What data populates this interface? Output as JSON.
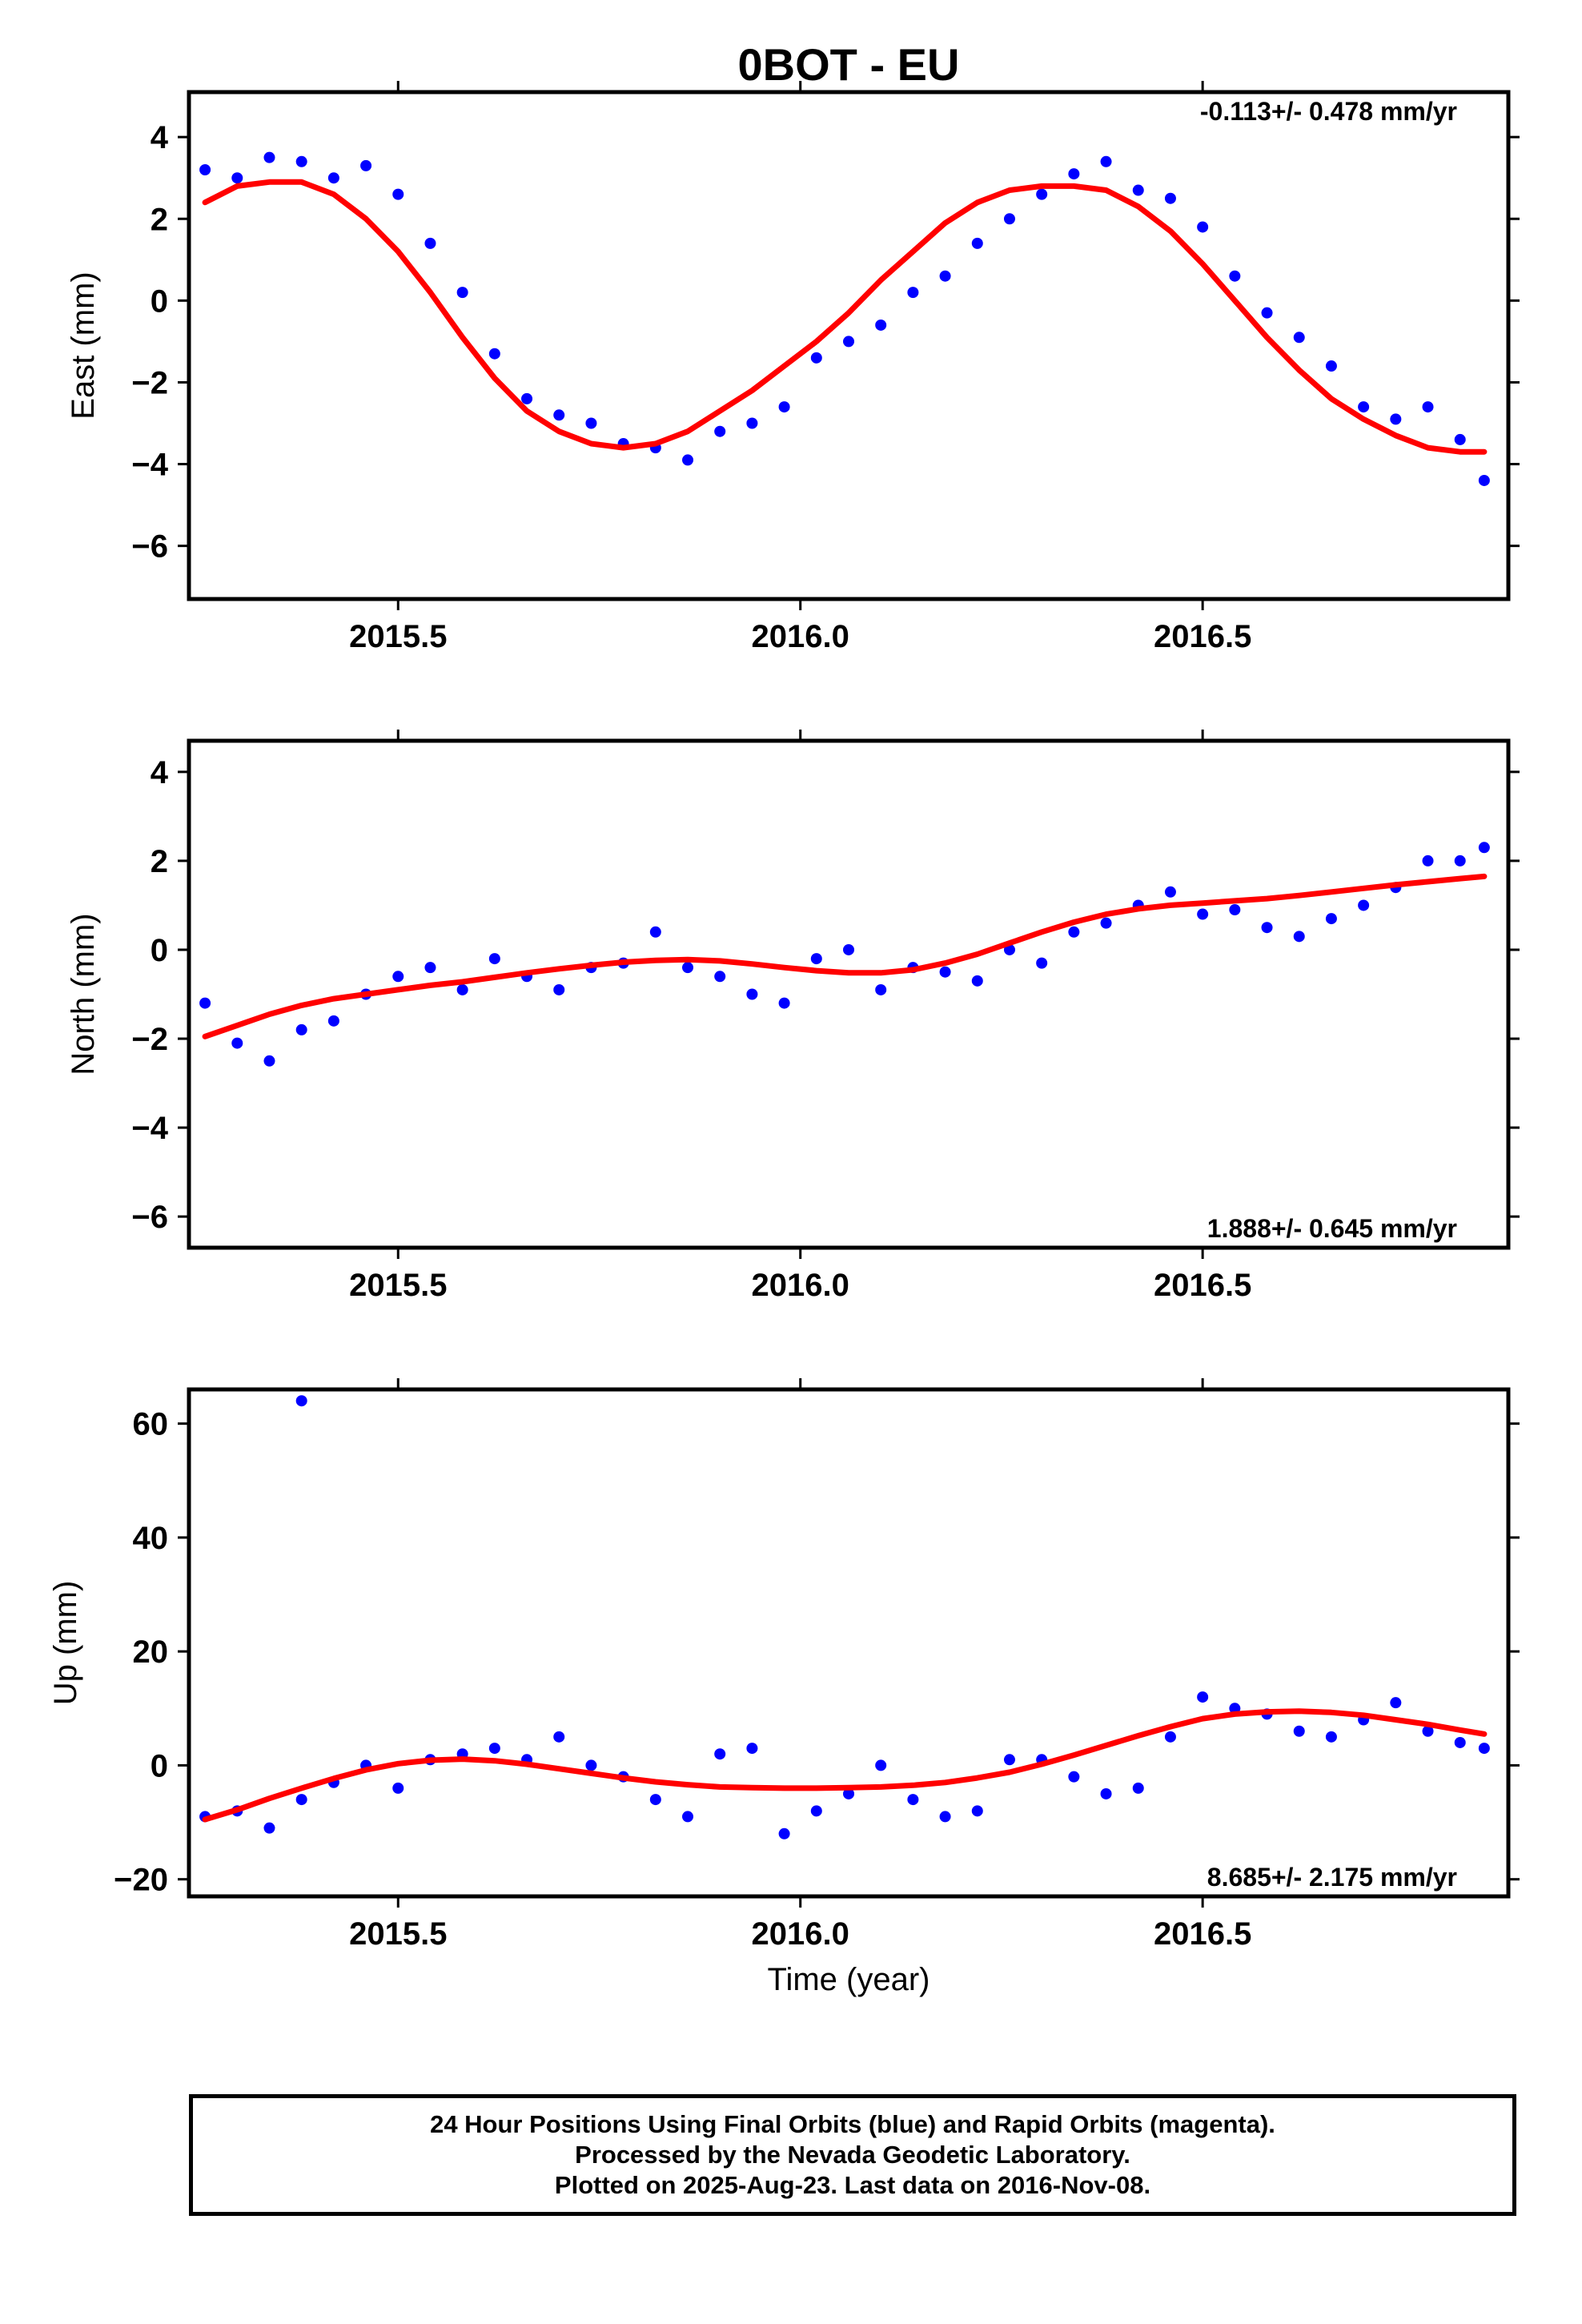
{
  "title": "0BOT - EU",
  "xlabel": "Time (year)",
  "x_tick_labels": [
    "2015.5",
    "2016.0",
    "2016.5"
  ],
  "colors": {
    "points": "#0000ff",
    "fit": "#ff0000",
    "frame": "#000000"
  },
  "footer": {
    "line1": "24 Hour Positions Using Final Orbits (blue) and Rapid Orbits (magenta).",
    "line2": "Processed by the Nevada Geodetic Laboratory.",
    "line3": "Plotted on 2025-Aug-23. Last data on 2016-Nov-08."
  },
  "chart_data": [
    {
      "type": "scatter",
      "ylabel": "East (mm)",
      "rate": "-0.113+/- 0.478 mm/yr",
      "xlim": [
        2015.24,
        2016.88
      ],
      "ylim": [
        -7.3,
        5.1
      ],
      "xticks": [
        2015.5,
        2016.0,
        2016.5
      ],
      "yticks": [
        -6,
        -4,
        -2,
        0,
        2,
        4
      ],
      "ytick_labels": [
        "−6",
        "−4",
        "−2",
        "0",
        "2",
        "4"
      ],
      "series": [
        {
          "kind": "points",
          "x": [
            2015.26,
            2015.3,
            2015.34,
            2015.38,
            2015.42,
            2015.46,
            2015.5,
            2015.54,
            2015.58,
            2015.62,
            2015.66,
            2015.7,
            2015.74,
            2015.78,
            2015.82,
            2015.86,
            2015.9,
            2015.94,
            2015.98,
            2016.02,
            2016.06,
            2016.1,
            2016.14,
            2016.18,
            2016.22,
            2016.26,
            2016.3,
            2016.34,
            2016.38,
            2016.42,
            2016.46,
            2016.5,
            2016.54,
            2016.58,
            2016.62,
            2016.66,
            2016.7,
            2016.74,
            2016.78,
            2016.82,
            2016.85
          ],
          "y": [
            3.2,
            3.0,
            3.5,
            3.4,
            3.0,
            3.3,
            2.6,
            1.4,
            0.2,
            -1.3,
            -2.4,
            -2.8,
            -3.0,
            -3.5,
            -3.6,
            -3.9,
            -3.2,
            -3.0,
            -2.6,
            -1.4,
            -1.0,
            -0.6,
            0.2,
            0.6,
            1.4,
            2.0,
            2.6,
            3.1,
            3.4,
            2.7,
            2.5,
            1.8,
            0.6,
            -0.3,
            -0.9,
            -1.6,
            -2.6,
            -2.9,
            -2.6,
            -3.4,
            -4.4
          ]
        },
        {
          "kind": "fit",
          "x": [
            2015.26,
            2015.3,
            2015.34,
            2015.38,
            2015.42,
            2015.46,
            2015.5,
            2015.54,
            2015.58,
            2015.62,
            2015.66,
            2015.7,
            2015.74,
            2015.78,
            2015.82,
            2015.86,
            2015.9,
            2015.94,
            2015.98,
            2016.02,
            2016.06,
            2016.1,
            2016.14,
            2016.18,
            2016.22,
            2016.26,
            2016.3,
            2016.34,
            2016.38,
            2016.42,
            2016.46,
            2016.5,
            2016.54,
            2016.58,
            2016.62,
            2016.66,
            2016.7,
            2016.74,
            2016.78,
            2016.82,
            2016.85
          ],
          "y": [
            2.4,
            2.8,
            2.9,
            2.9,
            2.6,
            2.0,
            1.2,
            0.2,
            -0.9,
            -1.9,
            -2.7,
            -3.2,
            -3.5,
            -3.6,
            -3.5,
            -3.2,
            -2.7,
            -2.2,
            -1.6,
            -1.0,
            -0.3,
            0.5,
            1.2,
            1.9,
            2.4,
            2.7,
            2.8,
            2.8,
            2.7,
            2.3,
            1.7,
            0.9,
            0.0,
            -0.9,
            -1.7,
            -2.4,
            -2.9,
            -3.3,
            -3.6,
            -3.7,
            -3.7
          ]
        }
      ]
    },
    {
      "type": "scatter",
      "ylabel": "North (mm)",
      "rate": "1.888+/- 0.645 mm/yr",
      "xlim": [
        2015.24,
        2016.88
      ],
      "ylim": [
        -6.7,
        4.7
      ],
      "xticks": [
        2015.5,
        2016.0,
        2016.5
      ],
      "yticks": [
        -6,
        -4,
        -2,
        0,
        2,
        4
      ],
      "ytick_labels": [
        "−6",
        "−4",
        "−2",
        "0",
        "2",
        "4"
      ],
      "series": [
        {
          "kind": "points",
          "x": [
            2015.26,
            2015.3,
            2015.34,
            2015.38,
            2015.42,
            2015.46,
            2015.5,
            2015.54,
            2015.58,
            2015.62,
            2015.66,
            2015.7,
            2015.74,
            2015.78,
            2015.82,
            2015.86,
            2015.9,
            2015.94,
            2015.98,
            2016.02,
            2016.06,
            2016.1,
            2016.14,
            2016.18,
            2016.22,
            2016.26,
            2016.3,
            2016.34,
            2016.38,
            2016.42,
            2016.46,
            2016.5,
            2016.54,
            2016.58,
            2016.62,
            2016.66,
            2016.7,
            2016.74,
            2016.78,
            2016.82,
            2016.85
          ],
          "y": [
            -1.2,
            -2.1,
            -2.5,
            -1.8,
            -1.6,
            -1.0,
            -0.6,
            -0.4,
            -0.9,
            -0.2,
            -0.6,
            -0.9,
            -0.4,
            -0.3,
            0.4,
            -0.4,
            -0.6,
            -1.0,
            -1.2,
            -0.2,
            0.0,
            -0.9,
            -0.4,
            -0.5,
            -0.7,
            0.0,
            -0.3,
            0.4,
            0.6,
            1.0,
            1.3,
            0.8,
            0.9,
            0.5,
            0.3,
            0.7,
            1.0,
            1.4,
            2.0,
            2.0,
            2.3
          ]
        },
        {
          "kind": "fit",
          "x": [
            2015.26,
            2015.3,
            2015.34,
            2015.38,
            2015.42,
            2015.46,
            2015.5,
            2015.54,
            2015.58,
            2015.62,
            2015.66,
            2015.7,
            2015.74,
            2015.78,
            2015.82,
            2015.86,
            2015.9,
            2015.94,
            2015.98,
            2016.02,
            2016.06,
            2016.1,
            2016.14,
            2016.18,
            2016.22,
            2016.26,
            2016.3,
            2016.34,
            2016.38,
            2016.42,
            2016.46,
            2016.5,
            2016.54,
            2016.58,
            2016.62,
            2016.66,
            2016.7,
            2016.74,
            2016.78,
            2016.82,
            2016.85
          ],
          "y": [
            -1.95,
            -1.7,
            -1.45,
            -1.25,
            -1.1,
            -1.0,
            -0.9,
            -0.8,
            -0.72,
            -0.62,
            -0.52,
            -0.43,
            -0.35,
            -0.28,
            -0.24,
            -0.22,
            -0.25,
            -0.32,
            -0.4,
            -0.47,
            -0.52,
            -0.52,
            -0.45,
            -0.3,
            -0.1,
            0.15,
            0.4,
            0.62,
            0.8,
            0.92,
            1.0,
            1.05,
            1.1,
            1.15,
            1.22,
            1.3,
            1.38,
            1.46,
            1.53,
            1.6,
            1.65
          ]
        }
      ]
    },
    {
      "type": "scatter",
      "ylabel": "Up (mm)",
      "rate": "8.685+/- 2.175 mm/yr",
      "xlim": [
        2015.24,
        2016.88
      ],
      "ylim": [
        -23,
        66
      ],
      "xticks": [
        2015.5,
        2016.0,
        2016.5
      ],
      "yticks": [
        -20,
        0,
        20,
        40,
        60
      ],
      "ytick_labels": [
        "−20",
        "0",
        "20",
        "40",
        "60"
      ],
      "series": [
        {
          "kind": "points",
          "x": [
            2015.26,
            2015.3,
            2015.34,
            2015.38,
            2015.42,
            2015.46,
            2015.5,
            2015.54,
            2015.58,
            2015.62,
            2015.66,
            2015.7,
            2015.74,
            2015.78,
            2015.82,
            2015.86,
            2015.9,
            2015.94,
            2015.98,
            2016.02,
            2016.06,
            2016.1,
            2016.14,
            2016.18,
            2016.22,
            2016.26,
            2016.3,
            2016.34,
            2016.38,
            2016.42,
            2016.46,
            2016.5,
            2016.54,
            2016.58,
            2016.62,
            2016.66,
            2016.7,
            2016.74,
            2016.78,
            2016.82,
            2016.85,
            2015.38
          ],
          "y": [
            -9,
            -8,
            -11,
            -6,
            -3,
            0,
            -4,
            1,
            2,
            3,
            1,
            5,
            0,
            -2,
            -6,
            -9,
            2,
            3,
            -12,
            -8,
            -5,
            0,
            -6,
            -9,
            -8,
            1,
            1,
            -2,
            -5,
            -4,
            5,
            12,
            10,
            9,
            6,
            5,
            8,
            11,
            6,
            4,
            3,
            64
          ]
        },
        {
          "kind": "fit",
          "x": [
            2015.26,
            2015.3,
            2015.34,
            2015.38,
            2015.42,
            2015.46,
            2015.5,
            2015.54,
            2015.58,
            2015.62,
            2015.66,
            2015.7,
            2015.74,
            2015.78,
            2015.82,
            2015.86,
            2015.9,
            2015.94,
            2015.98,
            2016.02,
            2016.06,
            2016.1,
            2016.14,
            2016.18,
            2016.22,
            2016.26,
            2016.3,
            2016.34,
            2016.38,
            2016.42,
            2016.46,
            2016.5,
            2016.54,
            2016.58,
            2016.62,
            2016.66,
            2016.7,
            2016.74,
            2016.78,
            2016.82,
            2016.85
          ],
          "y": [
            -9.5,
            -7.8,
            -5.8,
            -4.0,
            -2.3,
            -0.8,
            0.3,
            0.9,
            1.1,
            0.8,
            0.2,
            -0.6,
            -1.4,
            -2.2,
            -2.9,
            -3.4,
            -3.8,
            -3.9,
            -4.0,
            -4.0,
            -3.9,
            -3.8,
            -3.5,
            -3.0,
            -2.2,
            -1.2,
            0.2,
            1.8,
            3.5,
            5.2,
            6.8,
            8.2,
            9.0,
            9.4,
            9.5,
            9.3,
            8.8,
            8.0,
            7.2,
            6.2,
            5.5
          ]
        }
      ]
    }
  ]
}
